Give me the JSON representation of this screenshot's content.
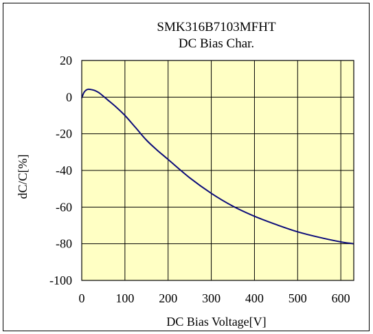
{
  "chart_data": {
    "type": "line",
    "title": "SMK316B7103MFHT",
    "subtitle": "DC Bias Char.",
    "xlabel": "DC Bias Voltage[V]",
    "ylabel": "dC/C[%]",
    "xlim": [
      0,
      630
    ],
    "ylim": [
      -100,
      20
    ],
    "xticks": [
      0,
      100,
      200,
      300,
      400,
      500,
      600
    ],
    "yticks": [
      20,
      0,
      -20,
      -40,
      -60,
      -80,
      -100
    ],
    "grid": true,
    "legend": "none",
    "plot_background": "#ffffc4",
    "line_color": "#0b0b7a",
    "series": [
      {
        "x": [
          0,
          5,
          10,
          15,
          20,
          30,
          40,
          50,
          60,
          80,
          100,
          125,
          150,
          175,
          200,
          250,
          300,
          350,
          400,
          450,
          500,
          550,
          600,
          630
        ],
        "y": [
          -0.5,
          2.5,
          3.8,
          4.3,
          4.2,
          3.6,
          2.4,
          0.5,
          -1.5,
          -5.5,
          -10,
          -16.7,
          -23.5,
          -29,
          -34,
          -44,
          -52.5,
          -59.5,
          -65,
          -69.5,
          -73.5,
          -76.5,
          -79,
          -80
        ]
      }
    ]
  }
}
